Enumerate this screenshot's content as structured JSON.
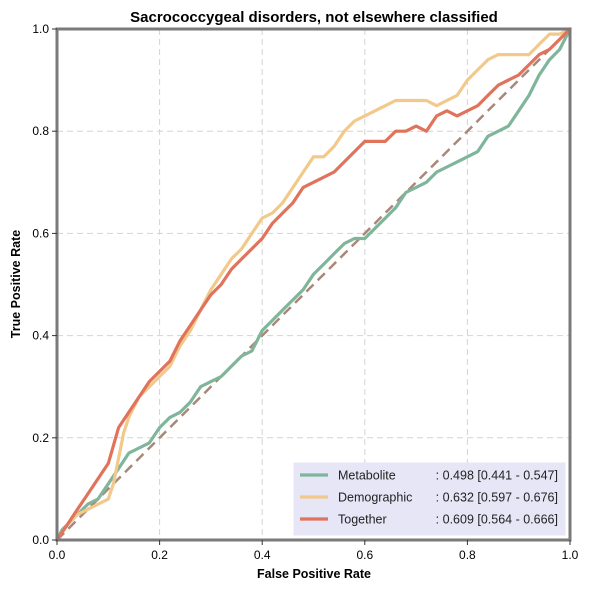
{
  "chart_data": {
    "type": "line",
    "title": "Sacrococcygeal disorders, not elsewhere classified",
    "xlabel": "False Positive Rate",
    "ylabel": "True Positive Rate",
    "xlim": [
      0,
      1
    ],
    "ylim": [
      0,
      1
    ],
    "xticks": [
      "0.0",
      "0.2",
      "0.4",
      "0.6",
      "0.8",
      "1.0"
    ],
    "yticks": [
      "0.0",
      "0.2",
      "0.4",
      "0.6",
      "0.8",
      "1.0"
    ],
    "grid": true,
    "legend_position": "bottom-right",
    "diagonal": {
      "x": [
        0,
        1
      ],
      "y": [
        0,
        1
      ],
      "color": "#a88878"
    },
    "series": [
      {
        "name": "Metabolite",
        "label_name": "Metabolite",
        "label_stats": ": 0.498 [0.441 - 0.547]",
        "color": "#7fb59b",
        "x": [
          0,
          0.01,
          0.02,
          0.04,
          0.06,
          0.08,
          0.1,
          0.12,
          0.14,
          0.16,
          0.18,
          0.2,
          0.22,
          0.24,
          0.26,
          0.28,
          0.3,
          0.32,
          0.34,
          0.36,
          0.38,
          0.4,
          0.42,
          0.44,
          0.46,
          0.48,
          0.5,
          0.52,
          0.54,
          0.56,
          0.58,
          0.6,
          0.62,
          0.64,
          0.66,
          0.68,
          0.7,
          0.72,
          0.74,
          0.76,
          0.78,
          0.8,
          0.82,
          0.84,
          0.86,
          0.88,
          0.9,
          0.92,
          0.94,
          0.96,
          0.98,
          1.0
        ],
        "y": [
          0,
          0.02,
          0.03,
          0.05,
          0.07,
          0.08,
          0.11,
          0.14,
          0.17,
          0.18,
          0.19,
          0.22,
          0.24,
          0.25,
          0.27,
          0.3,
          0.31,
          0.32,
          0.34,
          0.36,
          0.37,
          0.41,
          0.43,
          0.45,
          0.47,
          0.49,
          0.52,
          0.54,
          0.56,
          0.58,
          0.59,
          0.59,
          0.61,
          0.63,
          0.65,
          0.68,
          0.69,
          0.7,
          0.72,
          0.73,
          0.74,
          0.75,
          0.76,
          0.79,
          0.8,
          0.81,
          0.84,
          0.87,
          0.91,
          0.94,
          0.96,
          1.0
        ]
      },
      {
        "name": "Demographic",
        "label_name": "Demographic",
        "label_stats": ": 0.632 [0.597 - 0.676]",
        "color": "#f2c98b",
        "x": [
          0,
          0.02,
          0.04,
          0.06,
          0.08,
          0.1,
          0.11,
          0.12,
          0.13,
          0.14,
          0.15,
          0.16,
          0.18,
          0.2,
          0.22,
          0.24,
          0.26,
          0.28,
          0.3,
          0.32,
          0.34,
          0.36,
          0.38,
          0.4,
          0.42,
          0.44,
          0.46,
          0.48,
          0.5,
          0.52,
          0.54,
          0.56,
          0.58,
          0.6,
          0.62,
          0.64,
          0.66,
          0.68,
          0.7,
          0.72,
          0.74,
          0.76,
          0.78,
          0.8,
          0.82,
          0.84,
          0.86,
          0.88,
          0.9,
          0.92,
          0.94,
          0.96,
          0.98,
          1.0
        ],
        "y": [
          0,
          0.03,
          0.05,
          0.06,
          0.07,
          0.08,
          0.11,
          0.16,
          0.21,
          0.24,
          0.26,
          0.28,
          0.3,
          0.32,
          0.34,
          0.38,
          0.41,
          0.45,
          0.49,
          0.52,
          0.55,
          0.57,
          0.6,
          0.63,
          0.64,
          0.66,
          0.69,
          0.72,
          0.75,
          0.75,
          0.77,
          0.8,
          0.82,
          0.83,
          0.84,
          0.85,
          0.86,
          0.86,
          0.86,
          0.86,
          0.85,
          0.86,
          0.87,
          0.9,
          0.92,
          0.94,
          0.95,
          0.95,
          0.95,
          0.95,
          0.97,
          0.99,
          0.99,
          1.0
        ]
      },
      {
        "name": "Together",
        "label_name": "Together",
        "label_stats": ": 0.609 [0.564 - 0.666]",
        "color": "#e0735c",
        "x": [
          0,
          0.02,
          0.04,
          0.06,
          0.08,
          0.1,
          0.12,
          0.14,
          0.16,
          0.18,
          0.2,
          0.22,
          0.24,
          0.26,
          0.28,
          0.3,
          0.32,
          0.34,
          0.36,
          0.38,
          0.4,
          0.42,
          0.44,
          0.46,
          0.48,
          0.5,
          0.52,
          0.54,
          0.56,
          0.58,
          0.6,
          0.62,
          0.64,
          0.66,
          0.68,
          0.7,
          0.72,
          0.74,
          0.76,
          0.78,
          0.8,
          0.82,
          0.84,
          0.86,
          0.88,
          0.9,
          0.92,
          0.94,
          0.96,
          0.98,
          1.0
        ],
        "y": [
          0,
          0.03,
          0.06,
          0.09,
          0.12,
          0.15,
          0.22,
          0.25,
          0.28,
          0.31,
          0.33,
          0.35,
          0.39,
          0.42,
          0.45,
          0.48,
          0.5,
          0.53,
          0.55,
          0.57,
          0.59,
          0.62,
          0.64,
          0.66,
          0.69,
          0.7,
          0.71,
          0.72,
          0.74,
          0.76,
          0.78,
          0.78,
          0.78,
          0.8,
          0.8,
          0.81,
          0.8,
          0.83,
          0.84,
          0.83,
          0.84,
          0.85,
          0.87,
          0.89,
          0.9,
          0.91,
          0.93,
          0.95,
          0.96,
          0.98,
          1.0
        ]
      }
    ]
  }
}
